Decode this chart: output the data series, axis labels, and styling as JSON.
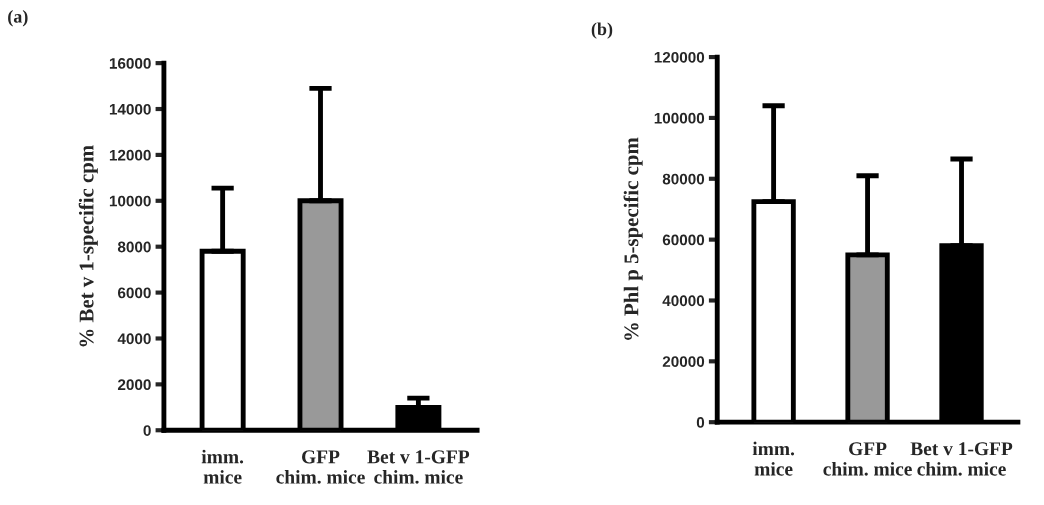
{
  "chart_data": [
    {
      "type": "bar",
      "title": "(a)",
      "ylabel": "% Bet v 1-specific cpm",
      "categories": [
        "imm.\nmice",
        "GFP\nchim. mice",
        "Bet v 1-GFP\nchim. mice"
      ],
      "values": [
        7800,
        10000,
        1000
      ],
      "colors": [
        "#ffffff",
        "#999999",
        "#000000"
      ],
      "errors": [
        [
          7800,
          10550
        ],
        [
          10000,
          14900
        ],
        [
          1000,
          1400
        ]
      ],
      "ylim": [
        0,
        16000
      ],
      "yticks": [
        0,
        2000,
        4000,
        6000,
        8000,
        10000,
        12000,
        14000,
        16000
      ],
      "grid": false,
      "legend": false
    },
    {
      "type": "bar",
      "title": "(b)",
      "ylabel": "% Phl p 5-specific cpm",
      "categories": [
        "imm.\nmice",
        "GFP\nchim. mice",
        "Bet v 1-GFP\nchim. mice"
      ],
      "values": [
        72500,
        55000,
        58000
      ],
      "colors": [
        "#ffffff",
        "#999999",
        "#000000"
      ],
      "errors": [
        [
          72500,
          104000
        ],
        [
          55000,
          81000
        ],
        [
          58000,
          86500
        ]
      ],
      "ylim": [
        0,
        120000
      ],
      "yticks": [
        0,
        20000,
        40000,
        60000,
        80000,
        100000,
        120000
      ],
      "grid": false,
      "legend": false
    }
  ]
}
